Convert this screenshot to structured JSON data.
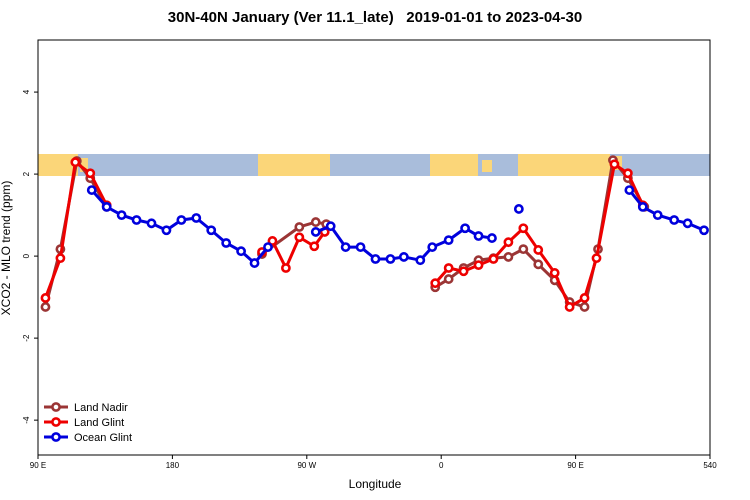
{
  "chart_data": {
    "type": "line",
    "title": "30N-40N January (Ver 11.1_late)   2019-01-01 to 2023-04-30",
    "x_label": "Longitude",
    "y_label": "XCO2 - MLO trend (ppm)",
    "xlim": [
      90,
      540
    ],
    "xticks": [
      {
        "value": 90,
        "label": "90 E"
      },
      180,
      {
        "value": 270,
        "label": "90 W"
      },
      {
        "value": 360,
        "label": "0"
      },
      {
        "value": 450,
        "label": "90 E"
      },
      540
    ],
    "ylim": [
      -4.85,
      5.27
    ],
    "yticks": [
      -4,
      -2,
      0,
      2,
      4
    ],
    "legend": "bottom-left",
    "series": [
      {
        "name": "Land Nadir",
        "color": "#9b3535",
        "x": [
          95,
          105,
          116,
          125,
          136,
          190,
          240,
          265,
          276,
          283,
          320,
          356,
          365,
          375,
          385,
          395,
          405,
          415,
          425,
          436,
          446,
          456,
          465,
          475,
          485,
          496
        ],
        "values": [
          -1.24,
          0.17,
          2.32,
          1.9,
          1.2,
          null,
          0.05,
          0.71,
          0.83,
          0.78,
          null,
          -0.76,
          -0.56,
          -0.29,
          -0.1,
          -0.05,
          -0.02,
          0.17,
          -0.2,
          -0.59,
          -1.12,
          -1.24,
          0.17,
          2.34,
          1.9,
          1.2
        ]
      },
      {
        "name": "Land Glint",
        "color": "#ee0000",
        "x": [
          95,
          105,
          115,
          125,
          136,
          190,
          240,
          247,
          256,
          265,
          275,
          282,
          320,
          356,
          365,
          375,
          385,
          395,
          405,
          415,
          425,
          436,
          446,
          456,
          464,
          476,
          485,
          495
        ],
        "values": [
          -1.02,
          -0.05,
          2.29,
          2.02,
          1.24,
          null,
          0.1,
          0.37,
          -0.29,
          0.46,
          0.24,
          0.59,
          null,
          -0.66,
          -0.29,
          -0.37,
          -0.22,
          -0.07,
          0.34,
          0.68,
          0.15,
          -0.41,
          -1.24,
          -1.02,
          -0.05,
          2.24,
          2.02,
          1.24
        ]
      },
      {
        "name": "Ocean Glint",
        "color": "#0000dd",
        "x": [
          126,
          136,
          146,
          156,
          166,
          176,
          186,
          196,
          206,
          216,
          226,
          235,
          244,
          260,
          276,
          286,
          296,
          306,
          316,
          326,
          335,
          346,
          354,
          365,
          376,
          385,
          394,
          403,
          412,
          450,
          486,
          495,
          505,
          516,
          525,
          536
        ],
        "values": [
          1.61,
          1.2,
          1.0,
          0.88,
          0.8,
          0.63,
          0.88,
          0.93,
          0.63,
          0.32,
          0.12,
          -0.17,
          0.22,
          null,
          0.59,
          0.73,
          0.22,
          0.22,
          -0.07,
          -0.07,
          -0.02,
          -0.1,
          0.22,
          0.39,
          0.68,
          0.49,
          0.44,
          null,
          1.15,
          null,
          1.61,
          1.2,
          1.0,
          0.88,
          0.8,
          0.63
        ]
      }
    ]
  }
}
